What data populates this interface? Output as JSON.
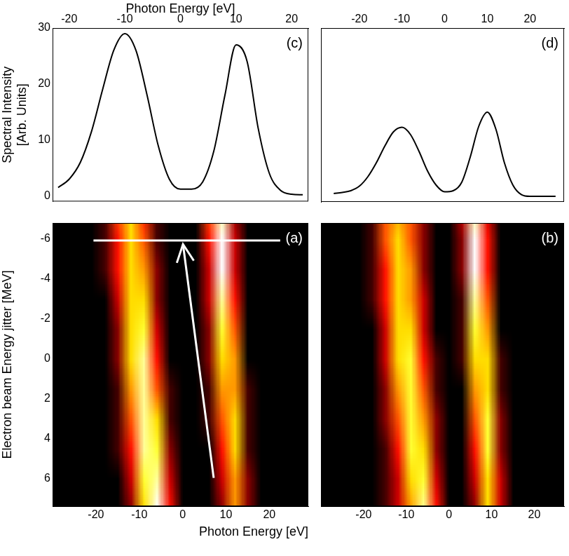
{
  "chart_data": [
    {
      "type": "line",
      "title": "(c)",
      "x_label": "Photon Energy [eV]",
      "y_label": [
        "Spectral Intensity",
        "[Arb. Units]"
      ],
      "x": [
        -22,
        -20,
        -18,
        -16,
        -14,
        -12,
        -10,
        -8,
        -6,
        -4,
        -2,
        0,
        2,
        4,
        6,
        8,
        10,
        12,
        14,
        16,
        18,
        20,
        22
      ],
      "values": [
        1.5,
        3,
        6,
        11.5,
        19,
        26,
        29,
        26,
        18,
        9,
        3,
        1.2,
        1.2,
        2.5,
        8,
        18,
        27,
        24,
        12,
        4,
        1,
        0.3,
        0.2
      ],
      "color": "#000000",
      "xlim": [
        -23,
        23
      ],
      "ylim": [
        -1,
        30
      ],
      "xticks": [
        -20,
        -10,
        0,
        10,
        20
      ],
      "yticks": [
        0,
        10,
        20,
        30
      ],
      "grid": false
    },
    {
      "type": "line",
      "title": "(d)",
      "x": [
        -26,
        -24,
        -22,
        -20,
        -18,
        -16,
        -14,
        -12,
        -10,
        -8,
        -6,
        -4,
        -2,
        0,
        2,
        4,
        6,
        8,
        10,
        12,
        14,
        16,
        18,
        20,
        22,
        24,
        26
      ],
      "values": [
        0.5,
        0.7,
        1,
        1.8,
        3.5,
        6,
        9,
        11.5,
        12.3,
        11,
        8,
        4.5,
        2,
        0.8,
        1,
        2.5,
        7,
        12.5,
        15,
        12,
        6,
        2,
        0.3,
        0,
        0,
        0,
        0
      ],
      "color": "#000000",
      "xlim": [
        -29,
        28
      ],
      "ylim": [
        -1,
        30
      ],
      "xticks": [
        -20,
        -10,
        0,
        10,
        20
      ],
      "yticks": [
        0,
        10,
        20,
        30
      ],
      "grid": false,
      "tick_labels": "x"
    },
    {
      "type": "heatmap",
      "title": "(a)",
      "x_label": "Photon Energy [eV]",
      "y_label": "Electron beam Energy jitter [MeV]",
      "x": [
        -27,
        -24,
        -21,
        -18,
        -15,
        -12,
        -9,
        -6,
        -3,
        0,
        3,
        6,
        9,
        12,
        15,
        18,
        21,
        24,
        27
      ],
      "y": [
        -7.5,
        -6,
        -4.5,
        -3,
        -1.5,
        0,
        1.5,
        3,
        4.5,
        6,
        7.5
      ],
      "cells": [
        [
          0,
          0,
          0,
          1,
          5,
          7,
          4,
          1,
          0,
          0,
          0,
          5,
          9,
          2,
          0,
          0,
          0,
          0,
          0
        ],
        [
          0,
          0,
          0,
          1,
          4,
          7,
          5,
          1,
          0,
          0,
          0,
          4,
          10,
          3,
          0,
          0,
          0,
          0,
          0
        ],
        [
          0,
          0,
          0,
          1,
          4,
          7,
          6,
          2,
          0,
          0,
          0,
          3,
          10,
          3,
          0,
          0,
          0,
          0,
          0
        ],
        [
          0,
          0,
          0,
          0,
          3,
          7,
          7,
          2,
          0,
          0,
          0,
          3,
          9,
          4,
          0,
          0,
          0,
          0,
          0
        ],
        [
          0,
          0,
          0,
          0,
          2,
          7,
          8,
          3,
          0,
          0,
          0,
          2,
          8,
          5,
          0,
          0,
          0,
          0,
          0
        ],
        [
          0,
          0,
          0,
          0,
          2,
          7,
          9,
          4,
          0,
          0,
          0,
          2,
          7,
          6,
          0,
          0,
          0,
          0,
          0
        ],
        [
          0,
          0,
          0,
          0,
          1,
          6,
          9,
          5,
          1,
          0,
          0,
          1,
          6,
          6,
          1,
          0,
          0,
          0,
          0
        ],
        [
          0,
          0,
          0,
          0,
          1,
          5,
          9,
          7,
          1,
          0,
          0,
          1,
          5,
          7,
          1,
          0,
          0,
          0,
          0
        ],
        [
          0,
          0,
          0,
          0,
          1,
          4,
          9,
          8,
          2,
          0,
          0,
          0,
          4,
          7,
          1,
          0,
          0,
          0,
          0
        ],
        [
          0,
          0,
          0,
          0,
          0,
          3,
          8,
          9,
          3,
          0,
          0,
          0,
          3,
          6,
          2,
          0,
          0,
          0,
          0
        ],
        [
          0,
          0,
          0,
          0,
          0,
          2,
          7,
          10,
          4,
          0,
          0,
          0,
          2,
          6,
          2,
          0,
          0,
          0,
          0
        ]
      ],
      "zlim": [
        0,
        10
      ],
      "xlim": [
        -30,
        29
      ],
      "ylim": [
        -6.8,
        7.4
      ],
      "xticks": [
        -20,
        -10,
        0,
        10,
        20
      ],
      "yticks": [
        -6,
        -4,
        -2,
        0,
        2,
        4,
        6
      ],
      "grid": false
    },
    {
      "type": "heatmap",
      "title": "(b)",
      "x": [
        -27,
        -24,
        -21,
        -18,
        -15,
        -12,
        -9,
        -6,
        -3,
        0,
        3,
        6,
        9,
        12,
        15,
        18,
        21,
        24,
        27
      ],
      "y": [
        -7.5,
        -6,
        -4.5,
        -3,
        -1.5,
        0,
        1.5,
        3,
        4.5,
        6,
        7.5
      ],
      "cells": [
        [
          0,
          0,
          0,
          1,
          5,
          6,
          5,
          2,
          0,
          0,
          3,
          9,
          3,
          0,
          0,
          0,
          0,
          0,
          0
        ],
        [
          0,
          0,
          0,
          1,
          5,
          7,
          5,
          2,
          0,
          0,
          2,
          10,
          4,
          0,
          0,
          0,
          0,
          0,
          0
        ],
        [
          0,
          0,
          0,
          1,
          4,
          7,
          6,
          2,
          0,
          0,
          2,
          10,
          4,
          0,
          0,
          0,
          0,
          0,
          0
        ],
        [
          0,
          0,
          0,
          1,
          4,
          7,
          6,
          3,
          0,
          0,
          1,
          9,
          5,
          0,
          0,
          0,
          0,
          0,
          0
        ],
        [
          0,
          0,
          0,
          0,
          3,
          7,
          7,
          3,
          0,
          0,
          1,
          8,
          6,
          0,
          0,
          0,
          0,
          0,
          0
        ],
        [
          0,
          0,
          0,
          0,
          3,
          7,
          8,
          4,
          1,
          0,
          1,
          7,
          7,
          1,
          0,
          0,
          0,
          0,
          0
        ],
        [
          0,
          0,
          0,
          0,
          2,
          6,
          8,
          5,
          1,
          0,
          0,
          6,
          7,
          1,
          0,
          0,
          0,
          0,
          0
        ],
        [
          0,
          0,
          0,
          0,
          2,
          5,
          8,
          6,
          2,
          0,
          0,
          5,
          8,
          2,
          0,
          0,
          0,
          0,
          0
        ],
        [
          0,
          0,
          0,
          0,
          1,
          4,
          8,
          7,
          2,
          0,
          0,
          4,
          8,
          2,
          0,
          0,
          0,
          0,
          0
        ],
        [
          0,
          0,
          0,
          0,
          1,
          3,
          7,
          8,
          3,
          0,
          0,
          3,
          7,
          3,
          0,
          0,
          0,
          0,
          0
        ],
        [
          0,
          0,
          0,
          0,
          1,
          3,
          6,
          9,
          4,
          0,
          0,
          2,
          7,
          3,
          0,
          0,
          0,
          0,
          0
        ]
      ],
      "zlim": [
        0,
        10
      ],
      "xlim": [
        -30,
        27
      ],
      "ylim": [
        -6.8,
        7.4
      ],
      "xticks": [
        -20,
        -10,
        0,
        10,
        20
      ],
      "yticks": [
        -6,
        -4,
        -2,
        0,
        2,
        4,
        6
      ],
      "grid": false,
      "tick_labels": "x"
    }
  ]
}
